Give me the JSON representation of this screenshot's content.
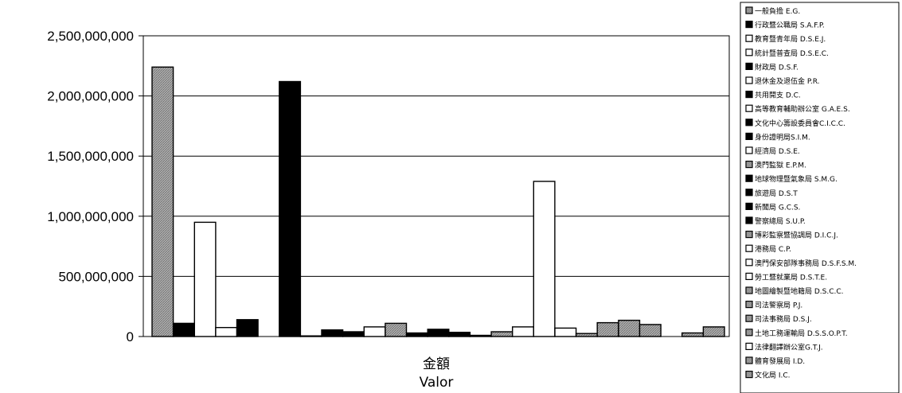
{
  "chart_data": {
    "type": "bar",
    "xlabel": [
      "金額",
      "Valor"
    ],
    "ylim": [
      0,
      2500000000
    ],
    "yticks": [
      0,
      500000000,
      1000000000,
      1500000000,
      2000000000,
      2500000000
    ],
    "ytick_labels": [
      "0",
      "500,000,000",
      "1,000,000,000",
      "1,500,000,000",
      "2,000,000,000",
      "2,500,000,000"
    ],
    "grid": true,
    "legend_position": "right",
    "series": [
      {
        "name": "一般負擔 E.G.",
        "value": 2240000000,
        "color": "#a8a8a8",
        "pattern": "hatch"
      },
      {
        "name": "行政暨公職局 S.A.F.P.",
        "value": 110000000,
        "color": "#000000",
        "pattern": "solid"
      },
      {
        "name": "教育暨青年局 D.S.E.J.",
        "value": 950000000,
        "color": "#ffffff",
        "pattern": "solid"
      },
      {
        "name": "統計暨普查局 D.S.E.C.",
        "value": 75000000,
        "color": "#ffffff",
        "pattern": "solid"
      },
      {
        "name": "財政局 D.S.F.",
        "value": 140000000,
        "color": "#000000",
        "pattern": "solid"
      },
      {
        "name": "退休金及退伍金 P.R.",
        "value": 0,
        "color": "#ffffff",
        "pattern": "solid"
      },
      {
        "name": "共用開支 D.C.",
        "value": 2120000000,
        "color": "#000000",
        "pattern": "solid"
      },
      {
        "name": "高等教育輔助辦公室 G.A.E.S.",
        "value": 5000000,
        "color": "#ffffff",
        "pattern": "solid"
      },
      {
        "name": "文化中心籌設委員會C.I.C.C.",
        "value": 55000000,
        "color": "#000000",
        "pattern": "solid"
      },
      {
        "name": "身份證明局S.I.M.",
        "value": 40000000,
        "color": "#000000",
        "pattern": "solid"
      },
      {
        "name": "經濟局 D.S.E.",
        "value": 80000000,
        "color": "#ffffff",
        "pattern": "solid"
      },
      {
        "name": "澳門監獄 E.P.M.",
        "value": 110000000,
        "color": "#a8a8a8",
        "pattern": "hatch"
      },
      {
        "name": "地球物理暨氣象局 S.M.G.",
        "value": 30000000,
        "color": "#000000",
        "pattern": "solid"
      },
      {
        "name": "旅遊局 D.S.T",
        "value": 60000000,
        "color": "#000000",
        "pattern": "solid"
      },
      {
        "name": "新聞局 G.C.S.",
        "value": 35000000,
        "color": "#000000",
        "pattern": "solid"
      },
      {
        "name": "警察總局 S.U.P.",
        "value": 10000000,
        "color": "#000000",
        "pattern": "solid"
      },
      {
        "name": "博彩監察暨協調局 D.I.C.J.",
        "value": 40000000,
        "color": "#a8a8a8",
        "pattern": "hatch"
      },
      {
        "name": "港務局 C.P.",
        "value": 80000000,
        "color": "#ffffff",
        "pattern": "solid"
      },
      {
        "name": "澳門保安部隊事務局 D.S.F.S.M.",
        "value": 1290000000,
        "color": "#ffffff",
        "pattern": "solid"
      },
      {
        "name": "勞工暨就業局 D.S.T.E.",
        "value": 70000000,
        "color": "#ffffff",
        "pattern": "solid"
      },
      {
        "name": "地圖繪製暨地籍局 D.S.C.C.",
        "value": 25000000,
        "color": "#a8a8a8",
        "pattern": "hatch"
      },
      {
        "name": "司法警察局 P.J.",
        "value": 115000000,
        "color": "#a8a8a8",
        "pattern": "hatch"
      },
      {
        "name": "司法事務局 D.S.J.",
        "value": 135000000,
        "color": "#a8a8a8",
        "pattern": "hatch"
      },
      {
        "name": "土地工務運輸局 D.S.S.O.P.T.",
        "value": 100000000,
        "color": "#a8a8a8",
        "pattern": "hatch"
      },
      {
        "name": "法律翻譯辦公室G.T.J.",
        "value": 0,
        "color": "#ffffff",
        "pattern": "solid"
      },
      {
        "name": "體育發展局 I.D.",
        "value": 30000000,
        "color": "#a8a8a8",
        "pattern": "hatch"
      },
      {
        "name": "文化局 I.C.",
        "value": 80000000,
        "color": "#a8a8a8",
        "pattern": "hatch"
      }
    ]
  }
}
